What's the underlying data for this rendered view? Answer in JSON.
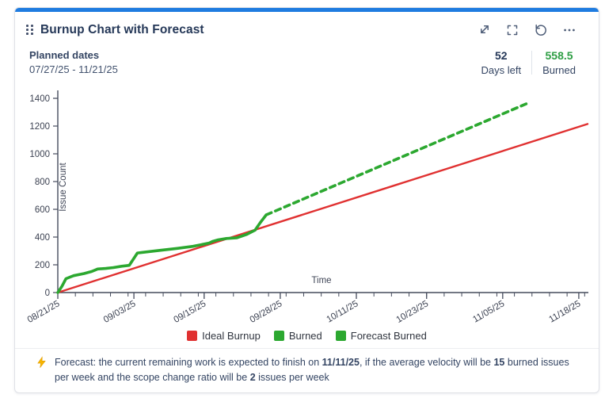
{
  "window": {
    "top_accent_color": "#1f7ce0"
  },
  "header": {
    "title": "Burnup Chart with Forecast",
    "icons": [
      "drag-handle-icon",
      "collapse-icon",
      "fullscreen-icon",
      "refresh-icon",
      "more-icon"
    ]
  },
  "subheader": {
    "planned_label": "Planned dates",
    "planned_range": "07/27/25 - 11/21/25",
    "stats": [
      {
        "value": "52",
        "label": "Days left",
        "value_color": "#253858"
      },
      {
        "value": "558.5",
        "label": "Burned",
        "value_color": "#2e9e44"
      }
    ]
  },
  "chart_data": {
    "type": "line",
    "title": "",
    "xlabel": "Time",
    "ylabel": "Issue Count",
    "x_start_date": "08/21/25",
    "x_axis_days": 90.5,
    "ylim": [
      0,
      1450
    ],
    "yticks": [
      0,
      200,
      400,
      600,
      800,
      1000,
      1200,
      1400
    ],
    "x_major_ticks": [
      {
        "day": 0,
        "label": "08/21/25"
      },
      {
        "day": 13,
        "label": "09/03/25"
      },
      {
        "day": 25,
        "label": "09/15/25"
      },
      {
        "day": 38,
        "label": "09/28/25"
      },
      {
        "day": 51,
        "label": "10/11/25"
      },
      {
        "day": 63,
        "label": "10/23/25"
      },
      {
        "day": 76,
        "label": "11/05/25"
      },
      {
        "day": 89,
        "label": "11/18/25"
      }
    ],
    "x_minor_tick_step_days": 3,
    "grid": false,
    "legend_position": "bottom",
    "series": [
      {
        "name": "Ideal Burnup",
        "color": "#e03131",
        "style": "solid",
        "width": 2.4,
        "points": [
          [
            0,
            0
          ],
          [
            90.5,
            1215
          ]
        ]
      },
      {
        "name": "Burned",
        "color": "#2ca830",
        "style": "solid",
        "width": 3.6,
        "points": [
          [
            0,
            0
          ],
          [
            0.7,
            45
          ],
          [
            1.4,
            100
          ],
          [
            2.7,
            122
          ],
          [
            4.5,
            137
          ],
          [
            5.8,
            152
          ],
          [
            6.8,
            170
          ],
          [
            8.2,
            174
          ],
          [
            9.5,
            180
          ],
          [
            10.9,
            190
          ],
          [
            12.2,
            196
          ],
          [
            13.6,
            285
          ],
          [
            14.5,
            290
          ],
          [
            17.7,
            305
          ],
          [
            20.4,
            318
          ],
          [
            23.1,
            333
          ],
          [
            24.5,
            345
          ],
          [
            25.8,
            356
          ],
          [
            26.5,
            370
          ],
          [
            27.4,
            380
          ],
          [
            28.8,
            390
          ],
          [
            30.6,
            395
          ],
          [
            32.3,
            420
          ],
          [
            33.7,
            450
          ],
          [
            34.6,
            505
          ],
          [
            35.6,
            560
          ]
        ]
      },
      {
        "name": "Forecast Burned",
        "color": "#2ca830",
        "style": "dashed",
        "width": 3.6,
        "points": [
          [
            35.6,
            560
          ],
          [
            80,
            1360
          ]
        ]
      }
    ]
  },
  "legend": [
    {
      "label": "Ideal Burnup",
      "color": "#e03131"
    },
    {
      "label": "Burned",
      "color": "#2ca830"
    },
    {
      "label": "Forecast Burned",
      "color": "#2ca830"
    }
  ],
  "footer": {
    "icon": "lightning-icon",
    "segments": [
      {
        "text": "Forecast: the current remaining work is expected to finish on ",
        "bold": false
      },
      {
        "text": "11/11/25",
        "bold": true
      },
      {
        "text": ", if the average velocity will be ",
        "bold": false
      },
      {
        "text": "15",
        "bold": true
      },
      {
        "text": " burned issues per week and the scope change ratio will be ",
        "bold": false
      },
      {
        "text": "2",
        "bold": true
      },
      {
        "text": " issues per week",
        "bold": false
      }
    ]
  }
}
